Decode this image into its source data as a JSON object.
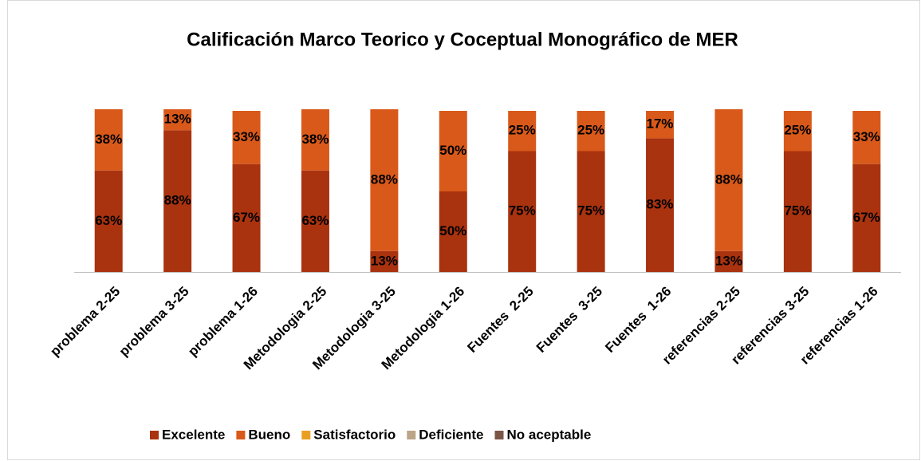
{
  "chart_data": {
    "type": "stacked_bar",
    "title": "Calificación Marco Teorico y Coceptual Monográfico de MER",
    "categories": [
      "problema 2-25",
      "problema 3-25",
      "problema 1-26",
      "Metodologia 2-25",
      "Metodologia 3-25",
      "Metodologia 1-26",
      "Fuentes  2-25",
      "Fuentes  3-25",
      "Fuentes  1-26",
      "referencias 2-25",
      "referencias 3-25",
      "referencias 1-26"
    ],
    "series": [
      {
        "name": "Excelente",
        "color": "#a9320f",
        "values": [
          63,
          88,
          67,
          63,
          13,
          50,
          75,
          75,
          83,
          13,
          75,
          67
        ],
        "value_labels": [
          "63%",
          "88%",
          "67%",
          "63%",
          "13%",
          "50%",
          "75%",
          "75%",
          "83%",
          "13%",
          "75%",
          "67%"
        ]
      },
      {
        "name": "Bueno",
        "color": "#d9591a",
        "values": [
          38,
          13,
          33,
          38,
          88,
          50,
          25,
          25,
          17,
          88,
          25,
          33
        ],
        "value_labels": [
          "38%",
          "13%",
          "33%",
          "38%",
          "88%",
          "50%",
          "25%",
          "25%",
          "17%",
          "88%",
          "25%",
          "33%"
        ]
      },
      {
        "name": "Satisfactorio",
        "color": "#e9a022",
        "values": [
          0,
          0,
          0,
          0,
          0,
          0,
          0,
          0,
          0,
          0,
          0,
          0
        ]
      },
      {
        "name": "Deficiente",
        "color": "#bba587",
        "values": [
          0,
          0,
          0,
          0,
          0,
          0,
          0,
          0,
          0,
          0,
          0,
          0
        ]
      },
      {
        "name": "No aceptable",
        "color": "#7b5646",
        "values": [
          0,
          0,
          0,
          0,
          0,
          0,
          0,
          0,
          0,
          0,
          0,
          0
        ]
      }
    ],
    "legend": "bottom"
  }
}
